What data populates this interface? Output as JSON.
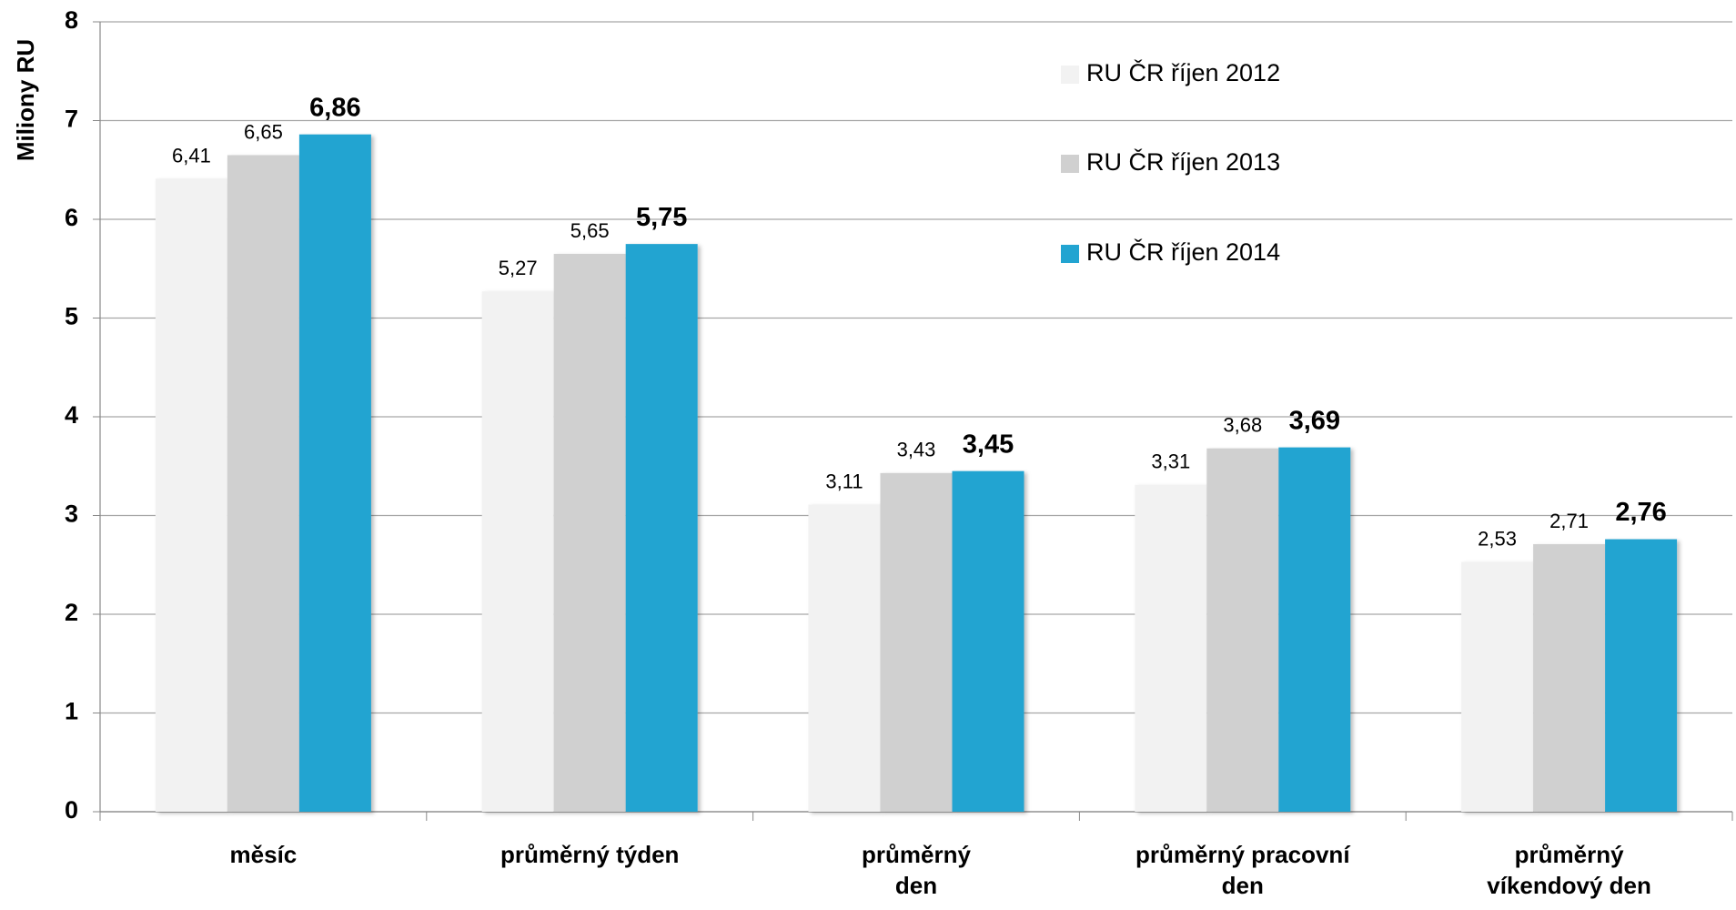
{
  "chart_data": {
    "type": "bar",
    "y_label": "Miliony RU",
    "categories": [
      "měsíc",
      "průměrný týden",
      "průměrný\nden",
      "průměrný pracovní\nden",
      "průměrný\nvíkendový den"
    ],
    "series": [
      {
        "name": "RU ČR říjen 2012",
        "color": "#f2f2f2",
        "values": [
          6.41,
          5.27,
          3.11,
          3.31,
          2.53
        ],
        "value_labels": [
          "6,41",
          "5,27",
          "3,11",
          "3,31",
          "2,53"
        ]
      },
      {
        "name": "RU ČR říjen 2013",
        "color": "#d0d0d0",
        "values": [
          6.65,
          5.65,
          3.43,
          3.68,
          2.71
        ],
        "value_labels": [
          "6,65",
          "5,65",
          "3,43",
          "3,68",
          "2,71"
        ]
      },
      {
        "name": "RU ČR říjen 2014",
        "color": "#22a4d1",
        "values": [
          6.86,
          5.75,
          3.45,
          3.69,
          2.76
        ],
        "value_labels": [
          "6,86",
          "5,75",
          "3,45",
          "3,69",
          "2,76"
        ]
      }
    ],
    "ylim": [
      0,
      8
    ],
    "yticks": [
      0,
      1,
      2,
      3,
      4,
      5,
      6,
      7,
      8
    ],
    "grid": true,
    "legend": "top-right"
  }
}
